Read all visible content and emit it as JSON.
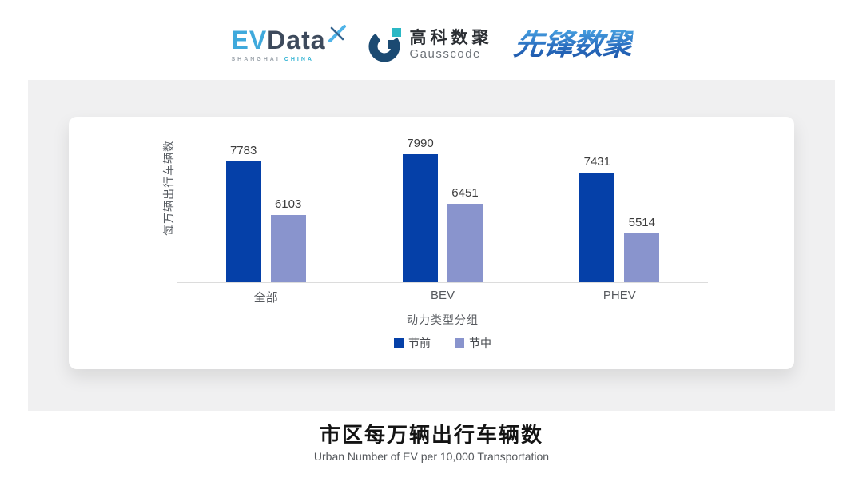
{
  "header": {
    "evdata": {
      "ev": "EV",
      "data": "Data",
      "sub_left": "SHANGHAI",
      "sub_right": "CHINA"
    },
    "gausscode": {
      "cn": "高科数聚",
      "en": "Gausscode"
    },
    "xianfeng": {
      "text": "先锋数聚"
    }
  },
  "chart_data": {
    "type": "bar",
    "title": "市区每万辆出行车辆数",
    "subtitle": "Urban Number of EV per 10,000 Transportation",
    "xlabel": "动力类型分组",
    "ylabel": "每万辆出行车辆数",
    "categories": [
      "全部",
      "BEV",
      "PHEV"
    ],
    "series": [
      {
        "name": "节前",
        "color": "#0540a8",
        "values": [
          7783,
          7990,
          7431
        ]
      },
      {
        "name": "节中",
        "color": "#8994cd",
        "values": [
          6103,
          6451,
          5514
        ]
      }
    ],
    "ylim": [
      4000,
      9000
    ],
    "grid": false,
    "legend_position": "bottom",
    "value_labels": true
  },
  "colors": {
    "panel_bg": "#f0f0f1",
    "card_bg": "#ffffff",
    "axis_line": "#dcdcdc",
    "evdata_blue": "#3fa9dc",
    "evdata_dark": "#3d4a5c",
    "gauss_navy": "#1b4a72",
    "gauss_teal": "#2bb8c5",
    "xianfeng_blue": "#2a6fc0"
  }
}
